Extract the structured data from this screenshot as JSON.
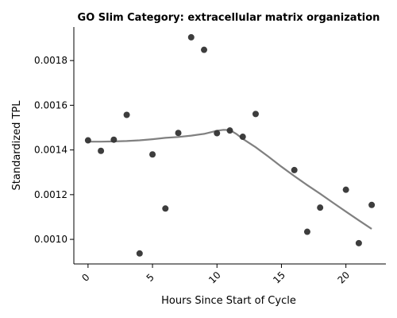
{
  "chart_data": {
    "type": "scatter",
    "title": "GO Slim Category: extracellular matrix organization",
    "xlabel": "Hours Since Start of Cycle",
    "ylabel": "Standardized TPL",
    "xlim": [
      -1.1,
      23.1
    ],
    "ylim": [
      0.00089,
      0.00195
    ],
    "x_ticks": [
      0,
      5,
      10,
      15,
      20
    ],
    "x_tick_labels": [
      "0",
      "5",
      "10",
      "15",
      "20"
    ],
    "x_tick_rotation_deg": -45,
    "y_ticks": [
      0.001,
      0.0012,
      0.0014,
      0.0016,
      0.0018
    ],
    "y_tick_labels": [
      "0.0010",
      "0.0012",
      "0.0014",
      "0.0016",
      "0.0018"
    ],
    "grid": false,
    "point_color": "#333333",
    "trend_color": "#808080",
    "points": [
      {
        "x": 0,
        "y": 0.001443
      },
      {
        "x": 1,
        "y": 0.001396
      },
      {
        "x": 2,
        "y": 0.001446
      },
      {
        "x": 3,
        "y": 0.001557
      },
      {
        "x": 4,
        "y": 0.000937
      },
      {
        "x": 5,
        "y": 0.00138
      },
      {
        "x": 6,
        "y": 0.001138
      },
      {
        "x": 7,
        "y": 0.001476
      },
      {
        "x": 8,
        "y": 0.001904
      },
      {
        "x": 9,
        "y": 0.001848
      },
      {
        "x": 10,
        "y": 0.001475
      },
      {
        "x": 11,
        "y": 0.001487
      },
      {
        "x": 12,
        "y": 0.001459
      },
      {
        "x": 13,
        "y": 0.001561
      },
      {
        "x": 16,
        "y": 0.00131
      },
      {
        "x": 17,
        "y": 0.001034
      },
      {
        "x": 18,
        "y": 0.001142
      },
      {
        "x": 20,
        "y": 0.001222
      },
      {
        "x": 21,
        "y": 0.000983
      },
      {
        "x": 22,
        "y": 0.001154
      }
    ],
    "trend_line": [
      {
        "x": 0,
        "y": 0.001437
      },
      {
        "x": 1,
        "y": 0.001437
      },
      {
        "x": 2,
        "y": 0.001438
      },
      {
        "x": 3,
        "y": 0.00144
      },
      {
        "x": 4,
        "y": 0.001443
      },
      {
        "x": 5,
        "y": 0.001448
      },
      {
        "x": 6,
        "y": 0.001454
      },
      {
        "x": 7,
        "y": 0.001458
      },
      {
        "x": 8,
        "y": 0.001464
      },
      {
        "x": 9,
        "y": 0.001472
      },
      {
        "x": 10,
        "y": 0.001486
      },
      {
        "x": 10.5,
        "y": 0.00149
      },
      {
        "x": 11,
        "y": 0.001489
      },
      {
        "x": 11.5,
        "y": 0.001472
      },
      {
        "x": 12,
        "y": 0.00145
      },
      {
        "x": 13,
        "y": 0.001412
      },
      {
        "x": 14,
        "y": 0.00137
      },
      {
        "x": 15,
        "y": 0.001325
      },
      {
        "x": 16,
        "y": 0.001283
      },
      {
        "x": 17,
        "y": 0.001243
      },
      {
        "x": 18,
        "y": 0.001204
      },
      {
        "x": 19,
        "y": 0.001164
      },
      {
        "x": 20,
        "y": 0.001124
      },
      {
        "x": 21,
        "y": 0.001085
      },
      {
        "x": 22,
        "y": 0.001047
      }
    ]
  }
}
